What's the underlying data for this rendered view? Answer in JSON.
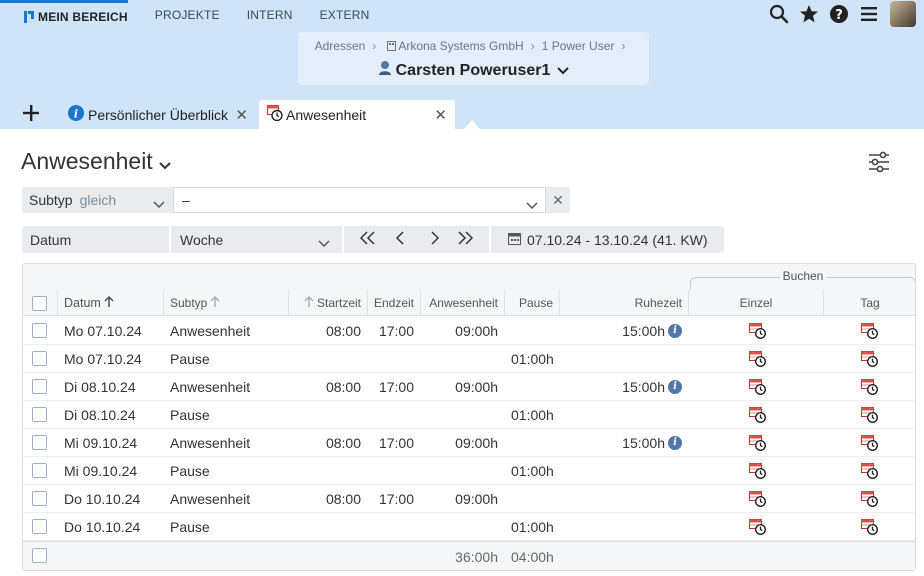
{
  "nav": {
    "items": [
      "MEIN BEREICH",
      "PROJEKTE",
      "INTERN",
      "EXTERN"
    ],
    "icons": [
      "search-icon",
      "star-icon",
      "help-icon",
      "menu-icon",
      "avatar"
    ]
  },
  "breadcrumb": {
    "items": [
      "Adressen",
      "Arkona Systems GmbH",
      "1 Power User"
    ],
    "person": "Carsten Poweruser1"
  },
  "tabs": [
    {
      "label": "Persönlicher Überblick",
      "icon": "info-icon"
    },
    {
      "label": "Anwesenheit",
      "icon": "attendance-icon"
    }
  ],
  "page": {
    "title": "Anwesenheit"
  },
  "filter_subtype": {
    "label": "Subtyp",
    "operator": "gleich",
    "value": "–"
  },
  "filter_date": {
    "label": "Datum",
    "period": "Woche",
    "range": "07.10.24 - 13.10.24 (41. KW)"
  },
  "table": {
    "group_header": "Buchen",
    "columns": {
      "datum": "Datum",
      "subtyp": "Subtyp",
      "startzeit": "Startzeit",
      "endzeit": "Endzeit",
      "anwesenheit": "Anwesenheit",
      "pause": "Pause",
      "ruhezeit": "Ruhezeit",
      "einzel": "Einzel",
      "tag": "Tag"
    },
    "rows": [
      {
        "datum": "Mo 07.10.24",
        "subtyp": "Anwesenheit",
        "start": "08:00",
        "end": "17:00",
        "anw": "09:00h",
        "pause": "",
        "ruhe": "15:00h",
        "info": true
      },
      {
        "datum": "Mo 07.10.24",
        "subtyp": "Pause",
        "start": "",
        "end": "",
        "anw": "",
        "pause": "01:00h",
        "ruhe": "",
        "info": false
      },
      {
        "datum": "Di 08.10.24",
        "subtyp": "Anwesenheit",
        "start": "08:00",
        "end": "17:00",
        "anw": "09:00h",
        "pause": "",
        "ruhe": "15:00h",
        "info": true
      },
      {
        "datum": "Di 08.10.24",
        "subtyp": "Pause",
        "start": "",
        "end": "",
        "anw": "",
        "pause": "01:00h",
        "ruhe": "",
        "info": false
      },
      {
        "datum": "Mi 09.10.24",
        "subtyp": "Anwesenheit",
        "start": "08:00",
        "end": "17:00",
        "anw": "09:00h",
        "pause": "",
        "ruhe": "15:00h",
        "info": true
      },
      {
        "datum": "Mi 09.10.24",
        "subtyp": "Pause",
        "start": "",
        "end": "",
        "anw": "",
        "pause": "01:00h",
        "ruhe": "",
        "info": false
      },
      {
        "datum": "Do 10.10.24",
        "subtyp": "Anwesenheit",
        "start": "08:00",
        "end": "17:00",
        "anw": "09:00h",
        "pause": "",
        "ruhe": "",
        "info": false
      },
      {
        "datum": "Do 10.10.24",
        "subtyp": "Pause",
        "start": "",
        "end": "",
        "anw": "",
        "pause": "01:00h",
        "ruhe": "",
        "info": false
      }
    ],
    "totals": {
      "anwesenheit": "36:00h",
      "pause": "04:00h"
    }
  },
  "colors": {
    "accent": "#1976d2",
    "header_bg": "#cfe4f7",
    "info": "#4f78a6"
  }
}
